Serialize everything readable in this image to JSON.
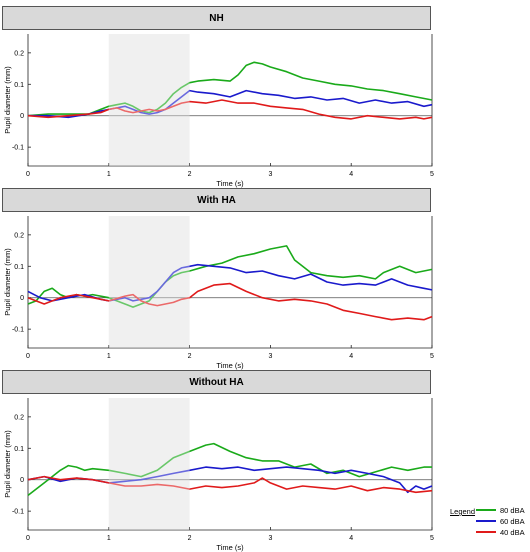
{
  "chart_data": [
    {
      "type": "line",
      "title": "NH",
      "xlabel": "Time (s)",
      "ylabel": "Pupil diameter (mm)",
      "xlim": [
        0,
        5
      ],
      "ylim": [
        -0.16,
        0.26
      ],
      "xticks": [
        "0",
        "1",
        "2",
        "3",
        "4",
        "5"
      ],
      "yticks": [
        "-0.1",
        "0",
        "0.1",
        "0.2"
      ],
      "shaded_x": [
        1,
        2
      ],
      "series": [
        {
          "name": "80 dBA",
          "color": "#1aaa1a",
          "x": [
            0,
            0.25,
            0.5,
            0.75,
            0.9,
            1.0,
            1.1,
            1.2,
            1.3,
            1.4,
            1.5,
            1.6,
            1.7,
            1.8,
            1.9,
            2.0,
            2.1,
            2.3,
            2.5,
            2.6,
            2.7,
            2.8,
            2.9,
            3.0,
            3.2,
            3.4,
            3.6,
            3.8,
            4.0,
            4.2,
            4.4,
            4.6,
            4.8,
            5.0
          ],
          "y": [
            0.0,
            0.005,
            0.005,
            0.005,
            0.02,
            0.03,
            0.035,
            0.04,
            0.03,
            0.015,
            0.01,
            0.02,
            0.04,
            0.07,
            0.09,
            0.105,
            0.11,
            0.115,
            0.11,
            0.13,
            0.16,
            0.17,
            0.165,
            0.155,
            0.14,
            0.12,
            0.11,
            0.1,
            0.095,
            0.085,
            0.08,
            0.07,
            0.06,
            0.05
          ]
        },
        {
          "name": "60 dBA",
          "color": "#1a1acc",
          "x": [
            0,
            0.25,
            0.5,
            0.75,
            0.9,
            1.0,
            1.1,
            1.2,
            1.3,
            1.4,
            1.5,
            1.6,
            1.7,
            1.8,
            1.9,
            2.0,
            2.1,
            2.3,
            2.5,
            2.7,
            2.9,
            3.1,
            3.3,
            3.5,
            3.7,
            3.9,
            4.1,
            4.3,
            4.5,
            4.7,
            4.9,
            5.0
          ],
          "y": [
            0.0,
            0.0,
            -0.005,
            0.005,
            0.015,
            0.02,
            0.025,
            0.03,
            0.02,
            0.01,
            0.005,
            0.01,
            0.02,
            0.04,
            0.06,
            0.08,
            0.075,
            0.07,
            0.06,
            0.08,
            0.07,
            0.065,
            0.055,
            0.06,
            0.05,
            0.055,
            0.04,
            0.05,
            0.04,
            0.045,
            0.03,
            0.035
          ]
        },
        {
          "name": "40 dBA",
          "color": "#e01a1a",
          "x": [
            0,
            0.25,
            0.5,
            0.75,
            0.9,
            1.0,
            1.1,
            1.2,
            1.3,
            1.4,
            1.5,
            1.6,
            1.7,
            1.8,
            1.9,
            2.0,
            2.2,
            2.4,
            2.6,
            2.8,
            3.0,
            3.2,
            3.4,
            3.6,
            3.8,
            4.0,
            4.2,
            4.4,
            4.6,
            4.8,
            4.9,
            5.0
          ],
          "y": [
            0.0,
            -0.005,
            0.0,
            0.005,
            0.01,
            0.02,
            0.025,
            0.015,
            0.01,
            0.015,
            0.02,
            0.015,
            0.02,
            0.03,
            0.04,
            0.045,
            0.04,
            0.05,
            0.04,
            0.04,
            0.03,
            0.025,
            0.02,
            0.005,
            -0.005,
            -0.01,
            0.0,
            -0.005,
            -0.01,
            -0.005,
            -0.01,
            -0.005
          ]
        }
      ]
    },
    {
      "type": "line",
      "title": "With HA",
      "xlabel": "Time (s)",
      "ylabel": "Pupil diameter (mm)",
      "xlim": [
        0,
        5
      ],
      "ylim": [
        -0.16,
        0.26
      ],
      "xticks": [
        "0",
        "1",
        "2",
        "3",
        "4",
        "5"
      ],
      "yticks": [
        "-0.1",
        "0",
        "0.1",
        "0.2"
      ],
      "shaded_x": [
        1,
        2
      ],
      "series": [
        {
          "name": "80 dBA",
          "color": "#1aaa1a",
          "x": [
            0,
            0.1,
            0.2,
            0.3,
            0.4,
            0.5,
            0.6,
            0.7,
            0.8,
            1.0,
            1.2,
            1.3,
            1.4,
            1.5,
            1.6,
            1.7,
            1.8,
            1.9,
            2.0,
            2.2,
            2.4,
            2.6,
            2.8,
            3.0,
            3.2,
            3.3,
            3.5,
            3.7,
            3.9,
            4.1,
            4.3,
            4.4,
            4.6,
            4.8,
            5.0
          ],
          "y": [
            -0.02,
            -0.01,
            0.02,
            0.03,
            0.01,
            0.0,
            0.01,
            0.005,
            0.01,
            0.0,
            -0.02,
            -0.03,
            -0.02,
            -0.01,
            0.02,
            0.05,
            0.07,
            0.08,
            0.085,
            0.1,
            0.11,
            0.13,
            0.14,
            0.155,
            0.165,
            0.12,
            0.08,
            0.07,
            0.065,
            0.07,
            0.06,
            0.08,
            0.1,
            0.08,
            0.09
          ]
        },
        {
          "name": "60 dBA",
          "color": "#1a1acc",
          "x": [
            0,
            0.15,
            0.3,
            0.5,
            0.7,
            0.9,
            1.0,
            1.1,
            1.2,
            1.3,
            1.4,
            1.5,
            1.6,
            1.7,
            1.8,
            1.9,
            2.0,
            2.1,
            2.3,
            2.5,
            2.7,
            2.9,
            3.1,
            3.3,
            3.5,
            3.7,
            3.9,
            4.1,
            4.3,
            4.5,
            4.7,
            4.9,
            5.0
          ],
          "y": [
            0.02,
            0.0,
            -0.01,
            0.0,
            0.01,
            -0.005,
            -0.01,
            -0.005,
            0.0,
            -0.01,
            -0.005,
            0.0,
            0.02,
            0.05,
            0.08,
            0.095,
            0.1,
            0.105,
            0.1,
            0.095,
            0.08,
            0.085,
            0.07,
            0.06,
            0.075,
            0.05,
            0.04,
            0.045,
            0.04,
            0.06,
            0.04,
            0.03,
            0.025
          ]
        },
        {
          "name": "40 dBA",
          "color": "#e01a1a",
          "x": [
            0,
            0.1,
            0.2,
            0.4,
            0.6,
            0.8,
            1.0,
            1.2,
            1.3,
            1.4,
            1.5,
            1.6,
            1.7,
            1.8,
            1.9,
            2.0,
            2.1,
            2.3,
            2.5,
            2.7,
            2.9,
            3.1,
            3.3,
            3.5,
            3.7,
            3.9,
            4.1,
            4.3,
            4.5,
            4.7,
            4.9,
            5.0
          ],
          "y": [
            0.0,
            -0.01,
            -0.02,
            0.0,
            0.01,
            0.0,
            -0.01,
            0.005,
            0.01,
            -0.01,
            -0.02,
            -0.025,
            -0.02,
            -0.015,
            -0.005,
            0.0,
            0.02,
            0.04,
            0.045,
            0.02,
            0.0,
            -0.01,
            -0.005,
            -0.01,
            -0.02,
            -0.04,
            -0.05,
            -0.06,
            -0.07,
            -0.065,
            -0.07,
            -0.06
          ]
        }
      ]
    },
    {
      "type": "line",
      "title": "Without HA",
      "xlabel": "Time (s)",
      "ylabel": "Pupil diameter (mm)",
      "xlim": [
        0,
        5
      ],
      "ylim": [
        -0.16,
        0.26
      ],
      "xticks": [
        "0",
        "1",
        "2",
        "3",
        "4",
        "5"
      ],
      "yticks": [
        "-0.1",
        "0",
        "0.1",
        "0.2"
      ],
      "shaded_x": [
        1,
        2
      ],
      "series": [
        {
          "name": "80 dBA",
          "color": "#1aaa1a",
          "x": [
            0,
            0.1,
            0.2,
            0.3,
            0.4,
            0.5,
            0.6,
            0.7,
            0.8,
            1.0,
            1.2,
            1.4,
            1.6,
            1.8,
            2.0,
            2.2,
            2.3,
            2.5,
            2.7,
            2.9,
            3.1,
            3.3,
            3.5,
            3.7,
            3.9,
            4.1,
            4.3,
            4.5,
            4.7,
            4.9,
            5.0
          ],
          "y": [
            -0.05,
            -0.03,
            -0.01,
            0.01,
            0.03,
            0.045,
            0.04,
            0.03,
            0.035,
            0.03,
            0.02,
            0.01,
            0.03,
            0.07,
            0.09,
            0.11,
            0.115,
            0.09,
            0.07,
            0.06,
            0.06,
            0.04,
            0.05,
            0.02,
            0.03,
            0.01,
            0.025,
            0.04,
            0.03,
            0.04,
            0.04
          ]
        },
        {
          "name": "60 dBA",
          "color": "#1a1acc",
          "x": [
            0,
            0.2,
            0.4,
            0.6,
            0.8,
            1.0,
            1.2,
            1.4,
            1.6,
            1.8,
            2.0,
            2.2,
            2.4,
            2.6,
            2.8,
            3.0,
            3.2,
            3.4,
            3.6,
            3.8,
            4.0,
            4.2,
            4.4,
            4.6,
            4.7,
            4.8,
            4.9,
            5.0
          ],
          "y": [
            0.0,
            0.01,
            -0.005,
            0.005,
            0.0,
            -0.01,
            -0.005,
            0.0,
            0.01,
            0.02,
            0.03,
            0.04,
            0.035,
            0.04,
            0.03,
            0.035,
            0.04,
            0.035,
            0.03,
            0.02,
            0.03,
            0.02,
            0.01,
            -0.01,
            -0.04,
            -0.02,
            -0.03,
            -0.02
          ]
        },
        {
          "name": "40 dBA",
          "color": "#e01a1a",
          "x": [
            0,
            0.2,
            0.4,
            0.6,
            0.8,
            1.0,
            1.2,
            1.4,
            1.6,
            1.8,
            2.0,
            2.2,
            2.4,
            2.6,
            2.8,
            2.9,
            3.0,
            3.2,
            3.4,
            3.6,
            3.8,
            4.0,
            4.2,
            4.4,
            4.6,
            4.8,
            5.0
          ],
          "y": [
            0.0,
            0.01,
            0.0,
            0.005,
            0.0,
            -0.01,
            -0.02,
            -0.02,
            -0.015,
            -0.02,
            -0.03,
            -0.02,
            -0.025,
            -0.02,
            -0.01,
            0.005,
            -0.01,
            -0.03,
            -0.02,
            -0.025,
            -0.03,
            -0.02,
            -0.035,
            -0.025,
            -0.03,
            -0.04,
            -0.035
          ]
        }
      ]
    }
  ],
  "legend": {
    "title": "Legend",
    "items": [
      {
        "label": "80 dBA",
        "color": "#1aaa1a"
      },
      {
        "label": "60 dBA",
        "color": "#1a1acc"
      },
      {
        "label": "40 dBA",
        "color": "#e01a1a"
      }
    ]
  }
}
